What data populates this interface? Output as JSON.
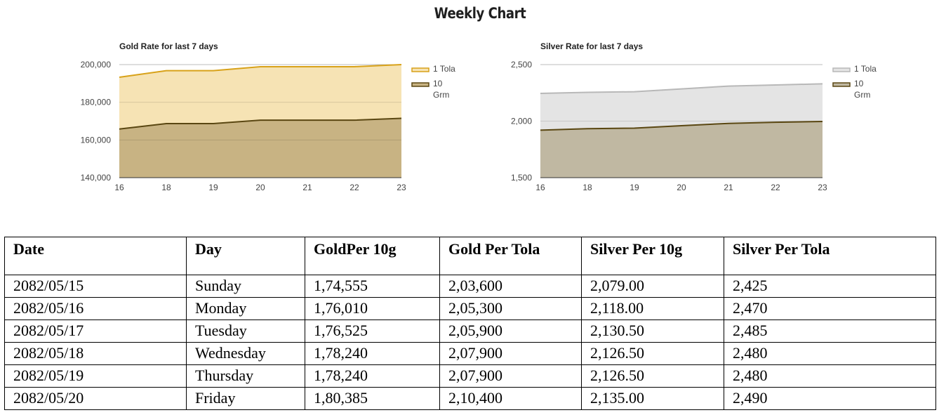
{
  "page": {
    "title": "Weekly Chart"
  },
  "chart_data": [
    {
      "type": "area",
      "title": "Gold Rate for last 7 days",
      "x": [
        "16",
        "18",
        "19",
        "20",
        "21",
        "22",
        "23"
      ],
      "series": [
        {
          "name": "1 Tola",
          "values": [
            193300,
            196800,
            196800,
            198900,
            198900,
            198900,
            200000
          ]
        },
        {
          "name": "10 Grm",
          "values": [
            165800,
            168700,
            168700,
            170500,
            170500,
            170500,
            171500
          ]
        }
      ],
      "ylim": [
        140000,
        200000
      ],
      "yticks": [
        140000,
        160000,
        180000,
        200000
      ],
      "ytick_labels": [
        "140,000",
        "160,000",
        "180,000",
        "200,000"
      ],
      "legend_position": "right",
      "colors": {
        "1 Tola": {
          "line": "#d8a21a",
          "fill": "#f6e3b4"
        },
        "10 Grm": {
          "line": "#5a4712",
          "fill": "#c8b383"
        }
      },
      "grid": true
    },
    {
      "type": "area",
      "title": "Silver Rate for last 7 days",
      "x": [
        "16",
        "18",
        "19",
        "20",
        "21",
        "22",
        "23"
      ],
      "series": [
        {
          "name": "1 Tola",
          "values": [
            2245,
            2255,
            2260,
            2285,
            2310,
            2320,
            2330
          ]
        },
        {
          "name": "10 Grm",
          "values": [
            1920,
            1933,
            1938,
            1960,
            1980,
            1990,
            1997
          ]
        }
      ],
      "ylim": [
        1500,
        2500
      ],
      "yticks": [
        1500,
        2000,
        2500
      ],
      "ytick_labels": [
        "1,500",
        "2,000",
        "2,500"
      ],
      "legend_position": "right",
      "colors": {
        "1 Tola": {
          "line": "#b8b8b8",
          "fill": "#e4e4e4"
        },
        "10 Grm": {
          "line": "#5a4712",
          "fill": "#c0b8a2"
        }
      },
      "grid": true
    }
  ],
  "table": {
    "headers": [
      "Date",
      "Day",
      "GoldPer 10g",
      "Gold Per Tola",
      "Silver Per 10g",
      "Silver Per Tola"
    ],
    "rows": [
      [
        "2082/05/15",
        "Sunday",
        "1,74,555",
        "2,03,600",
        "2,079.00",
        "2,425"
      ],
      [
        "2082/05/16",
        "Monday",
        "1,76,010",
        "2,05,300",
        "2,118.00",
        "2,470"
      ],
      [
        "2082/05/17",
        "Tuesday",
        "1,76,525",
        "2,05,900",
        "2,130.50",
        "2,485"
      ],
      [
        "2082/05/18",
        "Wednesday",
        "1,78,240",
        "2,07,900",
        "2,126.50",
        "2,480"
      ],
      [
        "2082/05/19",
        "Thursday",
        "1,78,240",
        "2,07,900",
        "2,126.50",
        "2,480"
      ],
      [
        "2082/05/20",
        "Friday",
        "1,80,385",
        "2,10,400",
        "2,135.00",
        "2,490"
      ]
    ]
  }
}
